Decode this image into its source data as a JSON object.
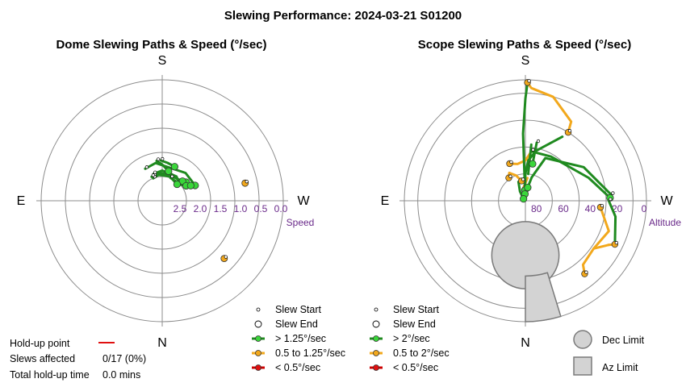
{
  "title": "Slewing Performance: 2024-03-21 S01200",
  "chart_data": [
    {
      "type": "polar",
      "title": "Dome Slewing Paths & Speed (°/sec)",
      "compass": {
        "top": "S",
        "bottom": "N",
        "left": "E",
        "right": "W"
      },
      "radial_label": "Speed",
      "radial_ticks": [
        "2.5",
        "2.0",
        "1.5",
        "1.0",
        "0.5",
        "0.0"
      ],
      "radial_range": [
        0.0,
        3.0
      ],
      "legend": [
        "Slew Start",
        "Slew End",
        "> 1.25°/sec",
        "0.5 to 1.25°/sec",
        "< 0.5°/sec"
      ],
      "series_colors": {
        "fast": "#1f8a1f",
        "medium": "#f2a81c",
        "slow": "#cc0000"
      },
      "fast_paths": [
        [
          [
            160,
            2.35
          ],
          [
            170,
            2.3
          ],
          [
            200,
            2.3
          ],
          [
            225,
            2.35
          ],
          [
            232,
            2.25
          ]
        ],
        [
          [
            158,
            2.4
          ],
          [
            172,
            2.35
          ],
          [
            205,
            2.35
          ],
          [
            226,
            2.3
          ]
        ],
        [
          [
            162,
            2.3
          ],
          [
            180,
            2.25
          ],
          [
            210,
            2.3
          ],
          [
            228,
            2.4
          ],
          [
            238,
            2.3
          ]
        ],
        [
          [
            156,
            2.35
          ],
          [
            168,
            2.3
          ],
          [
            195,
            2.35
          ],
          [
            222,
            2.45
          ]
        ],
        [
          [
            152,
            2.1
          ],
          [
            170,
            2.05
          ],
          [
            220,
            2.1
          ],
          [
            245,
            2.1
          ]
        ],
        [
          [
            178,
            2.0
          ],
          [
            188,
            2.05
          ],
          [
            200,
            2.1
          ]
        ],
        [
          [
            172,
            2.0
          ],
          [
            180,
            2.1
          ],
          [
            192,
            2.25
          ]
        ],
        [
          [
            200,
            2.4
          ],
          [
            225,
            2.4
          ],
          [
            242,
            2.2
          ]
        ]
      ],
      "fast_starts": [
        [
          160,
          2.35
        ],
        [
          158,
          2.4
        ],
        [
          162,
          2.3
        ],
        [
          156,
          2.35
        ],
        [
          152,
          2.1
        ],
        [
          178,
          2.0
        ],
        [
          172,
          2.0
        ],
        [
          200,
          2.4
        ]
      ],
      "fast_ends": [
        [
          232,
          2.25
        ],
        [
          226,
          2.3
        ],
        [
          238,
          2.3
        ],
        [
          222,
          2.45
        ],
        [
          245,
          2.1
        ],
        [
          200,
          2.1
        ],
        [
          192,
          2.25
        ],
        [
          242,
          2.2
        ]
      ],
      "medium_points": [
        [
          258,
          0.9
        ],
        [
          313,
          0.9
        ]
      ]
    },
    {
      "type": "polar",
      "title": "Scope Slewing Paths & Speed (°/sec)",
      "compass": {
        "top": "S",
        "bottom": "N",
        "left": "E",
        "right": "W"
      },
      "radial_label": "Altitude",
      "radial_ticks": [
        "80",
        "60",
        "40",
        "20",
        "0"
      ],
      "radial_range": [
        90,
        0
      ],
      "legend": [
        "Slew Start",
        "Slew End",
        "> 2°/sec",
        "0.5 to 2°/sec",
        "< 0.5°/sec"
      ],
      "limit_legend": [
        "Dec Limit",
        "Az Limit"
      ],
      "series_colors": {
        "fast": "#1f8a1f",
        "medium": "#f2a81c",
        "slow": "#cc0000"
      },
      "fast_paths": [
        [
          [
            181,
            2
          ],
          [
            180,
            14
          ],
          [
            178,
            40
          ],
          [
            178,
            82
          ]
        ],
        [
          [
            210,
            35
          ],
          [
            192,
            52
          ],
          [
            184,
            60
          ],
          [
            180,
            70
          ],
          [
            176,
            85
          ]
        ],
        [
          [
            187,
            53
          ],
          [
            210,
            52
          ],
          [
            250,
            40
          ],
          [
            268,
            27
          ]
        ],
        [
          [
            266,
            26
          ],
          [
            240,
            40
          ],
          [
            205,
            55
          ],
          [
            195,
            72
          ],
          [
            190,
            80
          ]
        ],
        [
          [
            160,
            75
          ],
          [
            150,
            82
          ],
          [
            135,
            88
          ]
        ],
        [
          [
            270,
            28
          ],
          [
            280,
            22
          ],
          [
            296,
            16
          ]
        ],
        [
          [
            191,
            46
          ],
          [
            191,
            62
          ]
        ],
        [
          [
            186,
            48
          ],
          [
            186,
            70
          ]
        ]
      ],
      "medium_paths": [
        [
          [
            181,
            2
          ],
          [
            183,
            6
          ],
          [
            195,
            10
          ],
          [
            210,
            22
          ],
          [
            212,
            30
          ]
        ],
        [
          [
            187,
            53
          ],
          [
            180,
            60
          ],
          [
            168,
            62
          ],
          [
            157,
            60
          ]
        ],
        [
          [
            169,
            75
          ],
          [
            160,
            70
          ],
          [
            150,
            66
          ],
          [
            144,
            69
          ]
        ],
        [
          [
            275,
            34
          ],
          [
            290,
            24
          ],
          [
            305,
            28
          ],
          [
            318,
            26
          ],
          [
            321,
            20
          ]
        ],
        [
          [
            298,
            20
          ],
          [
            296,
            16
          ]
        ],
        [
          [
            298,
            20
          ],
          [
            305,
            28
          ]
        ],
        [
          [
            185,
            73
          ],
          [
            172,
            80
          ],
          [
            160,
            86
          ]
        ]
      ],
      "medium_points": [
        [
          181,
          2
        ],
        [
          212,
          30
        ],
        [
          157,
          60
        ],
        [
          144,
          69
        ],
        [
          169,
          75
        ],
        [
          321,
          20
        ],
        [
          296,
          16
        ],
        [
          275,
          34
        ]
      ],
      "fast_starts": [
        [
          181,
          2
        ],
        [
          187,
          53
        ],
        [
          266,
          26
        ],
        [
          270,
          28
        ],
        [
          191,
          46
        ]
      ],
      "fast_ends": [
        [
          178,
          82
        ],
        [
          176,
          85
        ],
        [
          268,
          27
        ],
        [
          190,
          80
        ],
        [
          135,
          88
        ],
        [
          191,
          62
        ]
      ],
      "dec_limit": {
        "center": [
          0,
          49.5
        ],
        "radius": 20
      },
      "az_limit": {
        "azimuth_range": [
          343,
          360
        ],
        "altitude_range": [
          0,
          34
        ]
      }
    }
  ],
  "info": {
    "holdup_label": "Hold-up point",
    "slews_affected_label": "Slews affected",
    "slews_affected_value": "0/17 (0%)",
    "total_holdup_label": "Total hold-up time",
    "total_holdup_value": "0.0 mins"
  }
}
